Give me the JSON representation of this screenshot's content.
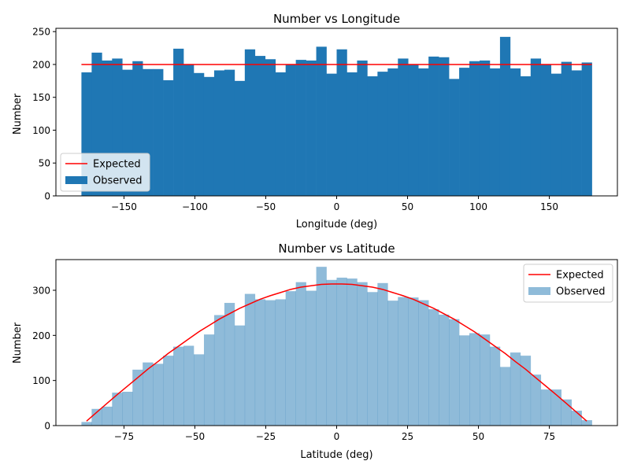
{
  "chart_data": [
    {
      "type": "bar",
      "title": "Number vs Longitude",
      "xlabel": "Longitude (deg)",
      "ylabel": "Number",
      "xlim": [
        -198,
        198
      ],
      "ylim": [
        0,
        255
      ],
      "xticks": [
        -150,
        -100,
        -50,
        0,
        50,
        100,
        150
      ],
      "yticks": [
        0,
        50,
        100,
        150,
        200,
        250
      ],
      "xtick_labels": [
        "−150",
        "−100",
        "−50",
        "0",
        "50",
        "100",
        "150"
      ],
      "ytick_labels": [
        "0",
        "50",
        "100",
        "150",
        "200",
        "250"
      ],
      "grid": false,
      "legend_position": "lower-left",
      "bin_start": -180,
      "bin_width": 7.2,
      "series": [
        {
          "name": "Observed",
          "kind": "histogram",
          "color": "#1f77b4",
          "opacity": 1.0,
          "values": [
            188,
            218,
            206,
            209,
            192,
            205,
            193,
            193,
            176,
            224,
            200,
            187,
            181,
            191,
            192,
            175,
            223,
            213,
            208,
            188,
            200,
            207,
            206,
            227,
            186,
            223,
            188,
            206,
            182,
            189,
            194,
            209,
            200,
            194,
            212,
            211,
            178,
            195,
            205,
            206,
            194,
            242,
            194,
            182,
            209,
            200,
            186,
            204,
            191,
            203
          ]
        },
        {
          "name": "Expected",
          "kind": "line",
          "color": "#ff0000",
          "x": [
            -180,
            180
          ],
          "y": [
            200,
            200
          ]
        }
      ],
      "legend": [
        {
          "label": "Expected",
          "kind": "line",
          "color": "#ff0000"
        },
        {
          "label": "Observed",
          "kind": "patch",
          "color": "#1f77b4"
        }
      ]
    },
    {
      "type": "bar",
      "title": "Number vs Latitude",
      "xlabel": "Latitude (deg)",
      "ylabel": "Number",
      "xlim": [
        -99,
        99
      ],
      "ylim": [
        0,
        368
      ],
      "xticks": [
        -75,
        -50,
        -25,
        0,
        25,
        50,
        75
      ],
      "yticks": [
        0,
        100,
        200,
        300
      ],
      "xtick_labels": [
        "−75",
        "−50",
        "−25",
        "0",
        "25",
        "50",
        "75"
      ],
      "ytick_labels": [
        "0",
        "100",
        "200",
        "300"
      ],
      "grid": false,
      "legend_position": "upper-right",
      "bin_start": -90,
      "bin_width": 3.6,
      "series": [
        {
          "name": "Observed",
          "kind": "histogram",
          "color": "#1f77b4",
          "opacity": 0.5,
          "values": [
            8,
            37,
            42,
            73,
            75,
            124,
            140,
            137,
            155,
            175,
            177,
            158,
            202,
            245,
            272,
            222,
            292,
            280,
            278,
            280,
            298,
            318,
            299,
            352,
            323,
            328,
            326,
            318,
            296,
            316,
            277,
            285,
            284,
            278,
            258,
            246,
            236,
            200,
            205,
            202,
            175,
            130,
            162,
            155,
            113,
            80,
            80,
            58,
            33,
            12
          ]
        },
        {
          "name": "Expected",
          "kind": "line",
          "color": "#ff0000",
          "x": [
            -88.2,
            -84.6,
            -81,
            -77.4,
            -73.8,
            -70.2,
            -66.6,
            -63,
            -59.4,
            -55.8,
            -52.2,
            -48.6,
            -45,
            -41.4,
            -37.8,
            -34.2,
            -30.6,
            -27,
            -23.4,
            -19.8,
            -16.2,
            -12.6,
            -9,
            -5.4,
            -1.8,
            1.8,
            5.4,
            9,
            12.6,
            16.2,
            19.8,
            23.4,
            27,
            30.6,
            34.2,
            37.8,
            41.4,
            45,
            48.6,
            52.2,
            55.8,
            59.4,
            63,
            66.6,
            70.2,
            73.8,
            77.4,
            81,
            84.6,
            88.2
          ],
          "y": [
            9.9,
            29.6,
            49.2,
            68.5,
            87.4,
            106.0,
            125.0,
            142.0,
            160.0,
            176.0,
            192.0,
            208.0,
            222.0,
            236.0,
            248.0,
            260.0,
            270.0,
            280.0,
            288.0,
            295.0,
            302.0,
            307.0,
            310.0,
            313.0,
            314.0,
            314.0,
            313.0,
            310.0,
            307.0,
            302.0,
            295.0,
            288.0,
            280.0,
            270.0,
            260.0,
            248.0,
            236.0,
            222.0,
            208.0,
            192.0,
            176.0,
            160.0,
            142.0,
            125.0,
            106.0,
            87.4,
            68.5,
            49.2,
            29.6,
            9.9
          ]
        }
      ],
      "legend": [
        {
          "label": "Expected",
          "kind": "line",
          "color": "#ff0000"
        },
        {
          "label": "Observed",
          "kind": "patch",
          "color": "#1f77b4"
        }
      ]
    }
  ]
}
